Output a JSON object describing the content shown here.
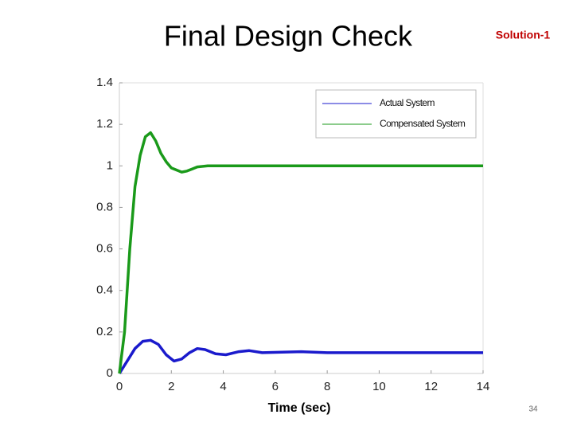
{
  "slide": {
    "title": "Final Design Check",
    "tag": "Solution-1",
    "page_number": "34"
  },
  "chart_data": {
    "type": "line",
    "x_label": "Time (sec)",
    "xlim": [
      0,
      14
    ],
    "xticks": [
      0,
      2,
      4,
      6,
      8,
      10,
      12,
      14
    ],
    "ylim": [
      0,
      1.4
    ],
    "yticks": [
      0,
      0.2,
      0.4,
      0.6,
      0.8,
      1,
      1.2,
      1.4
    ],
    "grid": false,
    "legend": "upper-right",
    "series": [
      {
        "name": "Actual System",
        "color": "#1a1acc",
        "x": [
          0,
          0.3,
          0.6,
          0.9,
          1.2,
          1.5,
          1.8,
          2.1,
          2.4,
          2.7,
          3.0,
          3.3,
          3.7,
          4.1,
          4.6,
          5.0,
          5.5,
          7,
          8,
          14
        ],
        "values": [
          0,
          0.06,
          0.12,
          0.155,
          0.16,
          0.14,
          0.09,
          0.06,
          0.07,
          0.1,
          0.12,
          0.115,
          0.095,
          0.09,
          0.105,
          0.11,
          0.1,
          0.105,
          0.1,
          0.1
        ]
      },
      {
        "name": "Compensated System",
        "color": "#1a9a1a",
        "x": [
          0,
          0.2,
          0.4,
          0.6,
          0.8,
          1.0,
          1.2,
          1.4,
          1.6,
          1.8,
          2.0,
          2.2,
          2.4,
          2.6,
          2.8,
          3.0,
          3.4,
          4,
          6,
          8,
          10,
          12,
          14
        ],
        "values": [
          0,
          0.2,
          0.6,
          0.9,
          1.05,
          1.14,
          1.16,
          1.12,
          1.06,
          1.02,
          0.99,
          0.98,
          0.97,
          0.975,
          0.985,
          0.995,
          1.0,
          1.0,
          1,
          1,
          1,
          1,
          1
        ]
      }
    ]
  }
}
